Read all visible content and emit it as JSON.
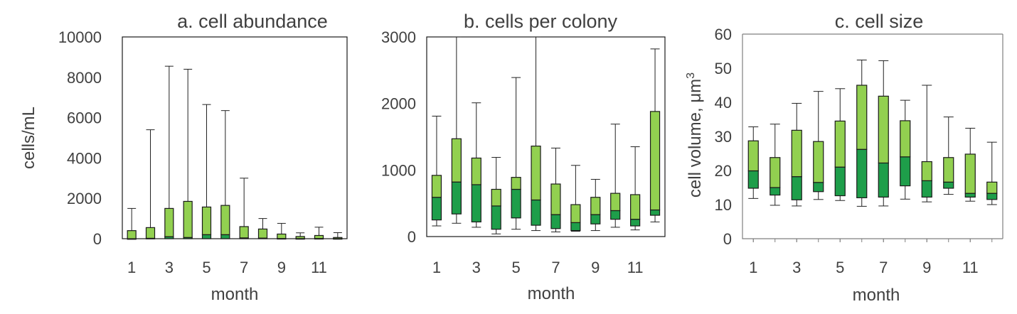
{
  "chart_data": [
    {
      "type": "box",
      "title": "a. cell abundance",
      "xlabel": "month",
      "ylabel": "cells/mL",
      "ylim": [
        0,
        10000
      ],
      "yticks": [
        0,
        2000,
        4000,
        6000,
        8000,
        10000
      ],
      "xtick_labels": [
        "1",
        "3",
        "5",
        "7",
        "9",
        "11"
      ],
      "colors": {
        "upper_box": "#92d050",
        "lower_box": "#1e9e4a"
      },
      "months": [
        1,
        2,
        3,
        4,
        5,
        6,
        7,
        8,
        9,
        10,
        11,
        12
      ],
      "min": [
        0,
        0,
        0,
        0,
        0,
        0,
        0,
        0,
        0,
        0,
        0,
        0
      ],
      "q1": [
        0,
        0,
        0,
        0,
        0,
        0,
        0,
        0,
        0,
        0,
        0,
        0
      ],
      "median": [
        0,
        20,
        100,
        60,
        200,
        200,
        40,
        30,
        10,
        5,
        10,
        5
      ],
      "q3": [
        400,
        550,
        1500,
        1850,
        1570,
        1650,
        600,
        480,
        230,
        110,
        160,
        60
      ],
      "max": [
        1500,
        5400,
        8550,
        8400,
        6650,
        6350,
        3000,
        1000,
        760,
        290,
        570,
        300
      ]
    },
    {
      "type": "box",
      "title": "b. cells per colony",
      "xlabel": "month",
      "ylabel": "",
      "ylim": [
        0,
        3000
      ],
      "yticks": [
        0,
        1000,
        2000,
        3000
      ],
      "xtick_labels": [
        "1",
        "3",
        "5",
        "7",
        "9",
        "11"
      ],
      "colors": {
        "upper_box": "#92d050",
        "lower_box": "#1e9e4a"
      },
      "months": [
        1,
        2,
        3,
        4,
        5,
        6,
        7,
        8,
        9,
        10,
        11,
        12
      ],
      "min": [
        160,
        200,
        140,
        40,
        110,
        90,
        70,
        80,
        90,
        140,
        100,
        220
      ],
      "q1": [
        250,
        340,
        220,
        110,
        280,
        170,
        120,
        90,
        190,
        260,
        160,
        320
      ],
      "median": [
        590,
        820,
        780,
        460,
        710,
        550,
        330,
        210,
        330,
        390,
        260,
        400
      ],
      "q3": [
        920,
        1470,
        1180,
        710,
        890,
        1360,
        790,
        480,
        590,
        650,
        630,
        1880
      ],
      "max": [
        1810,
        3000,
        2010,
        1190,
        2390,
        3000,
        1330,
        1070,
        860,
        1690,
        1350,
        2820
      ]
    },
    {
      "type": "box",
      "title": "c. cell size",
      "xlabel": "month",
      "ylabel": "cell volume, μm",
      "ylabel_superscript": "3",
      "ylim": [
        0,
        60
      ],
      "yticks": [
        0,
        10,
        20,
        30,
        40,
        50,
        60
      ],
      "xtick_labels": [
        "1",
        "3",
        "5",
        "7",
        "9",
        "11"
      ],
      "colors": {
        "upper_box": "#92d050",
        "lower_box": "#1e9e4a"
      },
      "months": [
        1,
        2,
        3,
        4,
        5,
        6,
        7,
        8,
        9,
        10,
        11,
        12
      ],
      "min": [
        11.8,
        9.8,
        9.6,
        11.5,
        11.2,
        9.5,
        9.6,
        11.6,
        10.8,
        13,
        11,
        10
      ],
      "q1": [
        14.8,
        12.8,
        11.4,
        13.8,
        12.6,
        12,
        12.2,
        15.5,
        12.2,
        14.8,
        12.2,
        11.5
      ],
      "median": [
        19.9,
        15,
        18.2,
        16.5,
        21,
        26.2,
        22.2,
        24,
        17,
        16.6,
        13.3,
        13.3
      ],
      "q3": [
        28.7,
        23.8,
        31.8,
        28.5,
        34.5,
        45,
        41.8,
        34.6,
        22.6,
        23.8,
        24.8,
        16.6
      ],
      "max": [
        32.8,
        33.6,
        39.7,
        43.2,
        44,
        52.4,
        52.2,
        40.6,
        45,
        35.7,
        32.4,
        28.3
      ]
    }
  ]
}
